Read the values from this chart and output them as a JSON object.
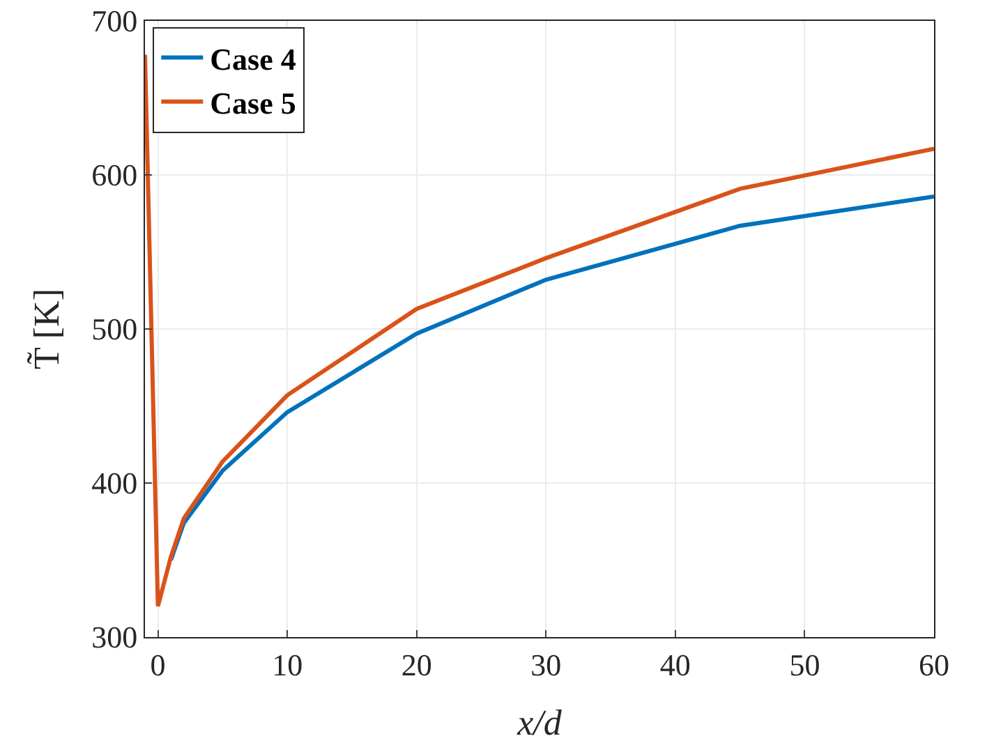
{
  "chart_data": {
    "type": "line",
    "xlabel": "x/d",
    "ylabel": "T̃ [K]",
    "x": [
      -1,
      0,
      1,
      2,
      5,
      10,
      20,
      30,
      45,
      60
    ],
    "series": [
      {
        "name": "Case 4",
        "color": "#0072bd",
        "values": [
          null,
          null,
          350,
          374,
          408,
          446,
          497,
          532,
          567,
          586
        ]
      },
      {
        "name": "Case 5",
        "color": "#d95319",
        "values": [
          678,
          320,
          352,
          377,
          414,
          457,
          513,
          546,
          591,
          617
        ]
      }
    ],
    "xlim": [
      -1,
      60
    ],
    "ylim": [
      300,
      700
    ],
    "xticks": [
      0,
      10,
      20,
      30,
      40,
      50,
      60
    ],
    "yticks": [
      300,
      400,
      500,
      600,
      700
    ],
    "grid": true,
    "legend": "top left",
    "marker": "none",
    "line_style": "solid"
  }
}
